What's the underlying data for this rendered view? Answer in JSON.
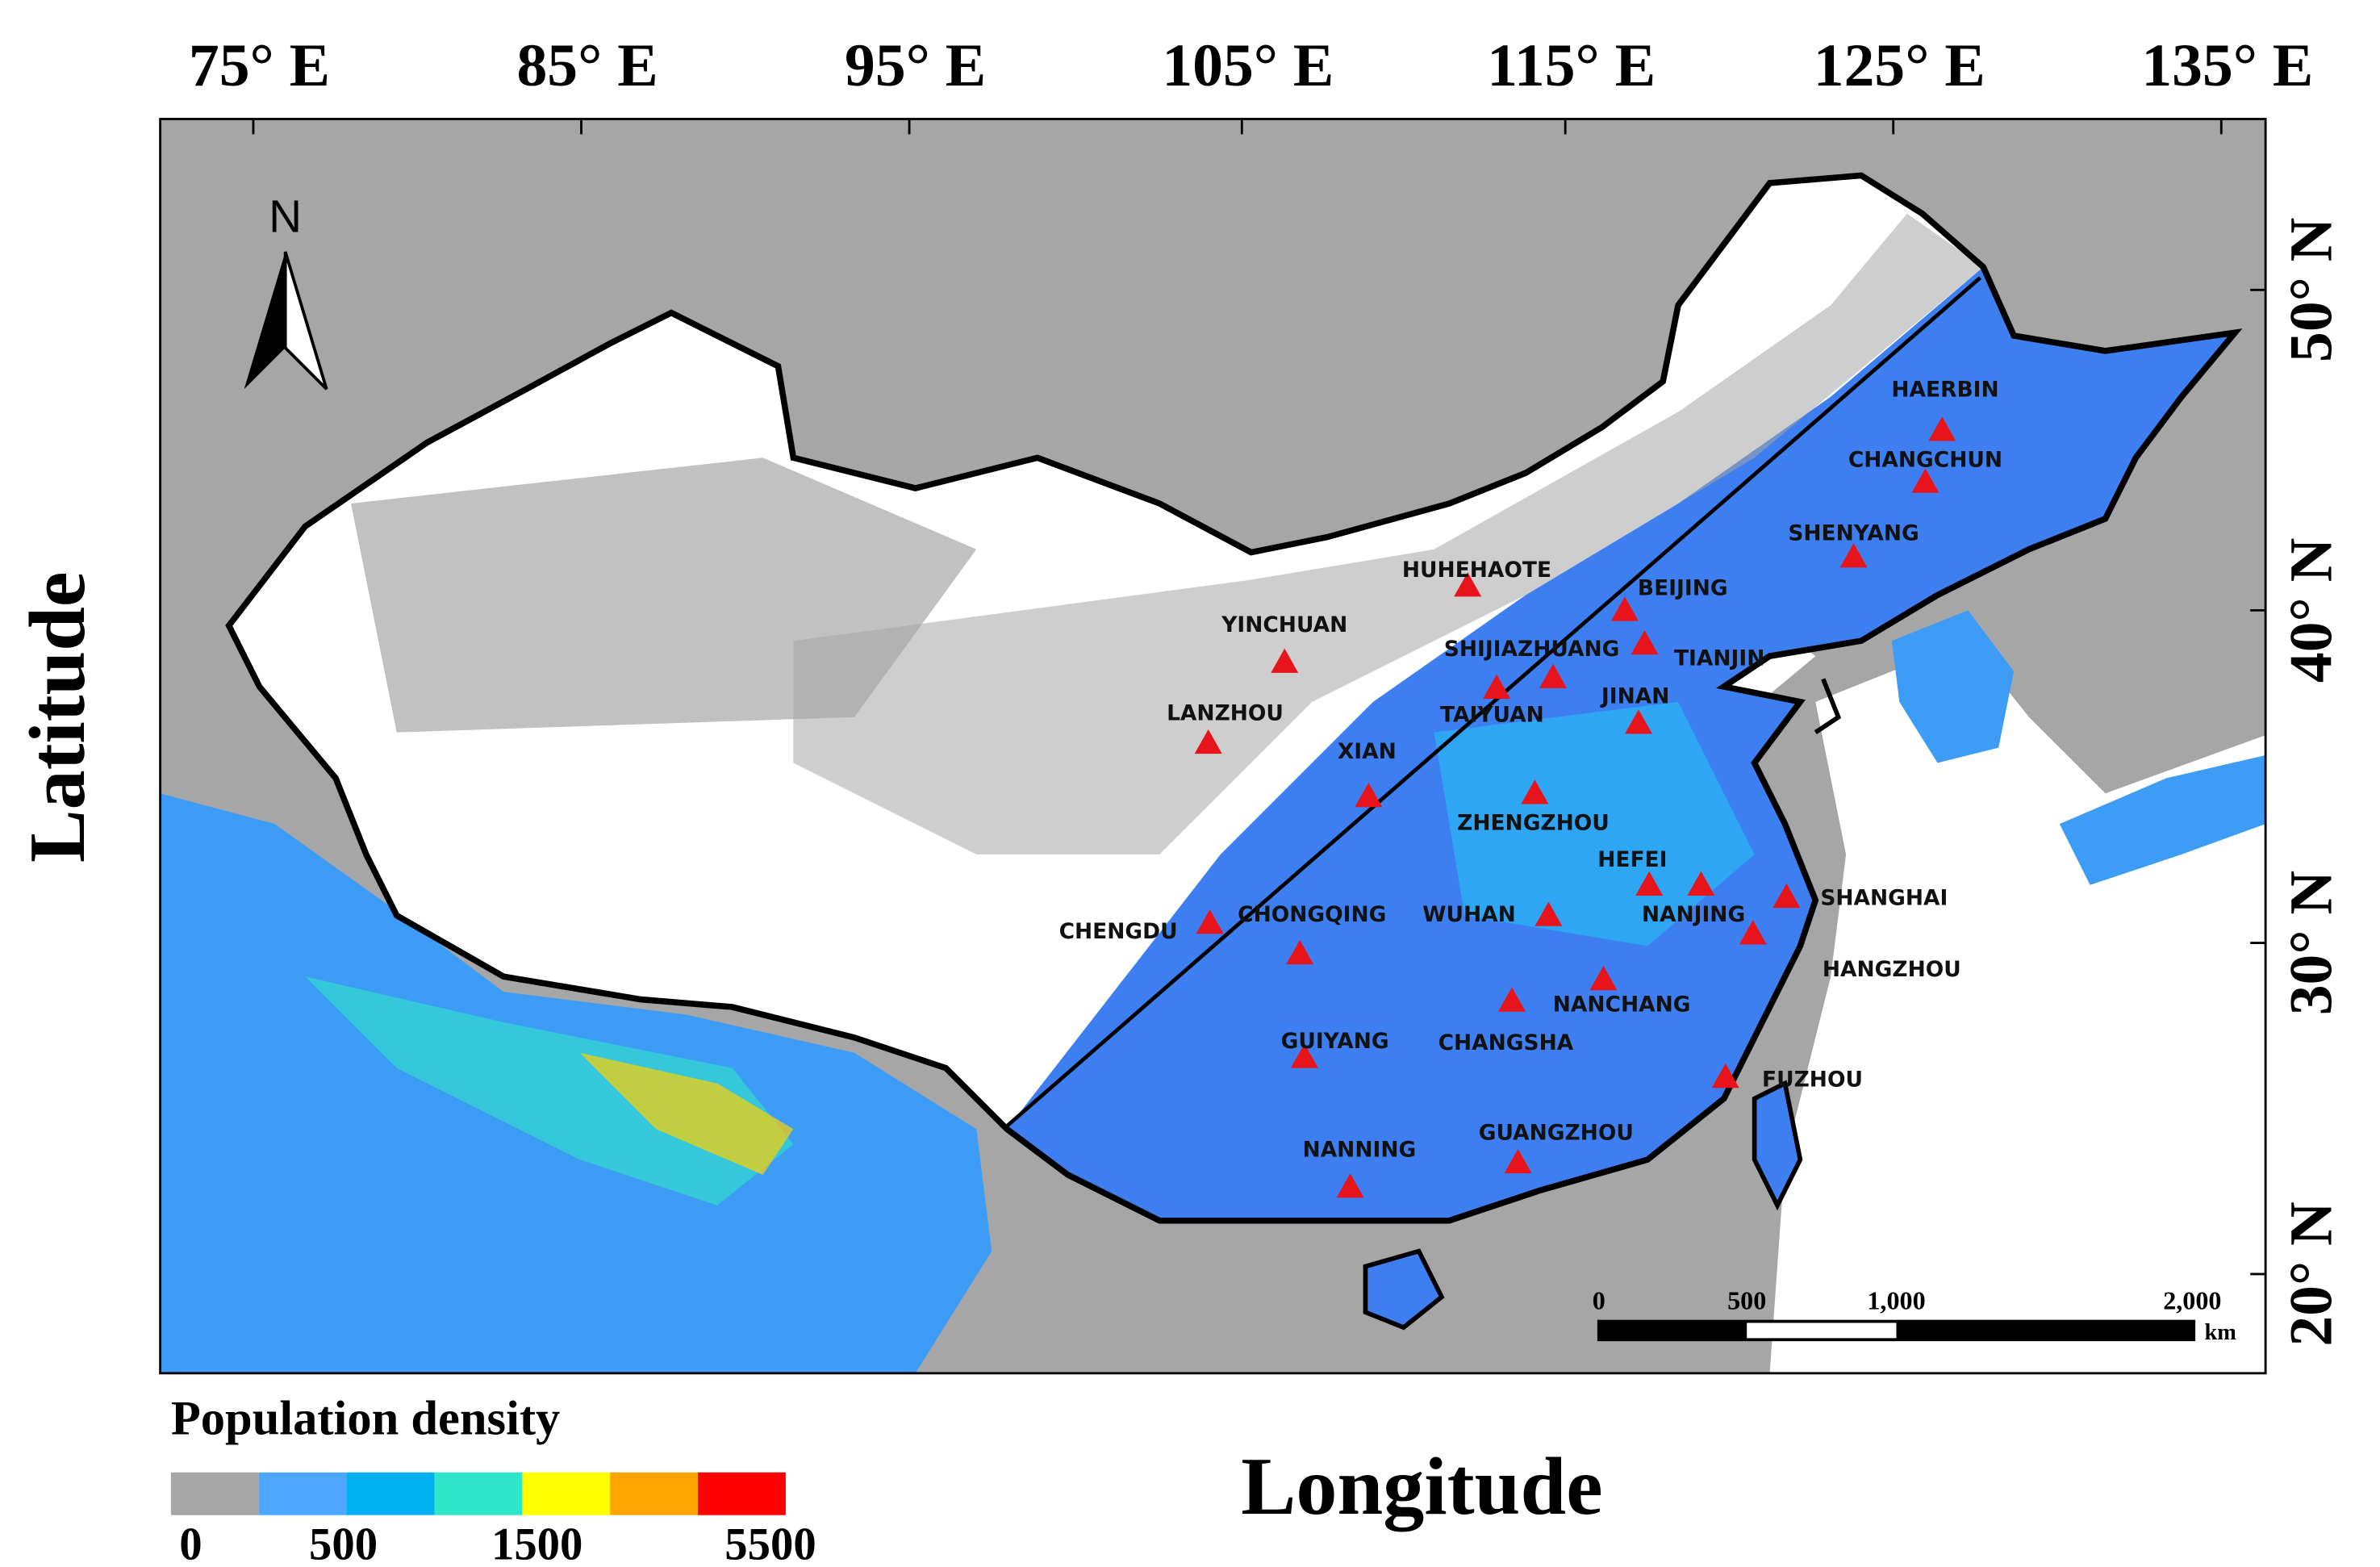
{
  "map": {
    "x_axis_label": "Longitude",
    "y_axis_label": "Latitude",
    "longitude_labels": [
      "75° E",
      "85° E",
      "95° E",
      "105° E",
      "115° E",
      "125° E",
      "135° E"
    ],
    "latitude_labels": [
      "50° N",
      "40° N",
      "30° N",
      "20° N"
    ],
    "north_label": "N",
    "cities": [
      "HAERBIN",
      "CHANGCHUN",
      "SHENYANG",
      "HUHEHAOTE",
      "BEIJING",
      "TIANJIN",
      "YINCHUAN",
      "SHIJIAZHUANG",
      "TAIYUAN",
      "JINAN",
      "LANZHOU",
      "XIAN",
      "ZHENGZHOU",
      "HEFEI",
      "NANJING",
      "SHANGHAI",
      "CHENGDU",
      "CHONGQING",
      "WUHAN",
      "HANGZHOU",
      "NANCHANG",
      "CHANGSHA",
      "GUIYANG",
      "FUZHOU",
      "GUANGZHOU",
      "NANNING"
    ],
    "legend": {
      "title": "Population density",
      "colors": [
        "#a6a6a6",
        "#4da6ff",
        "#00b0f0",
        "#2ee6c8",
        "#ffff00",
        "#ffa500",
        "#ff0000"
      ],
      "labels": [
        "0",
        "500",
        "1500",
        "5500"
      ]
    },
    "scale_bar": {
      "labels": [
        "0",
        "500",
        "1,000",
        "2,000"
      ],
      "unit": "km"
    }
  }
}
